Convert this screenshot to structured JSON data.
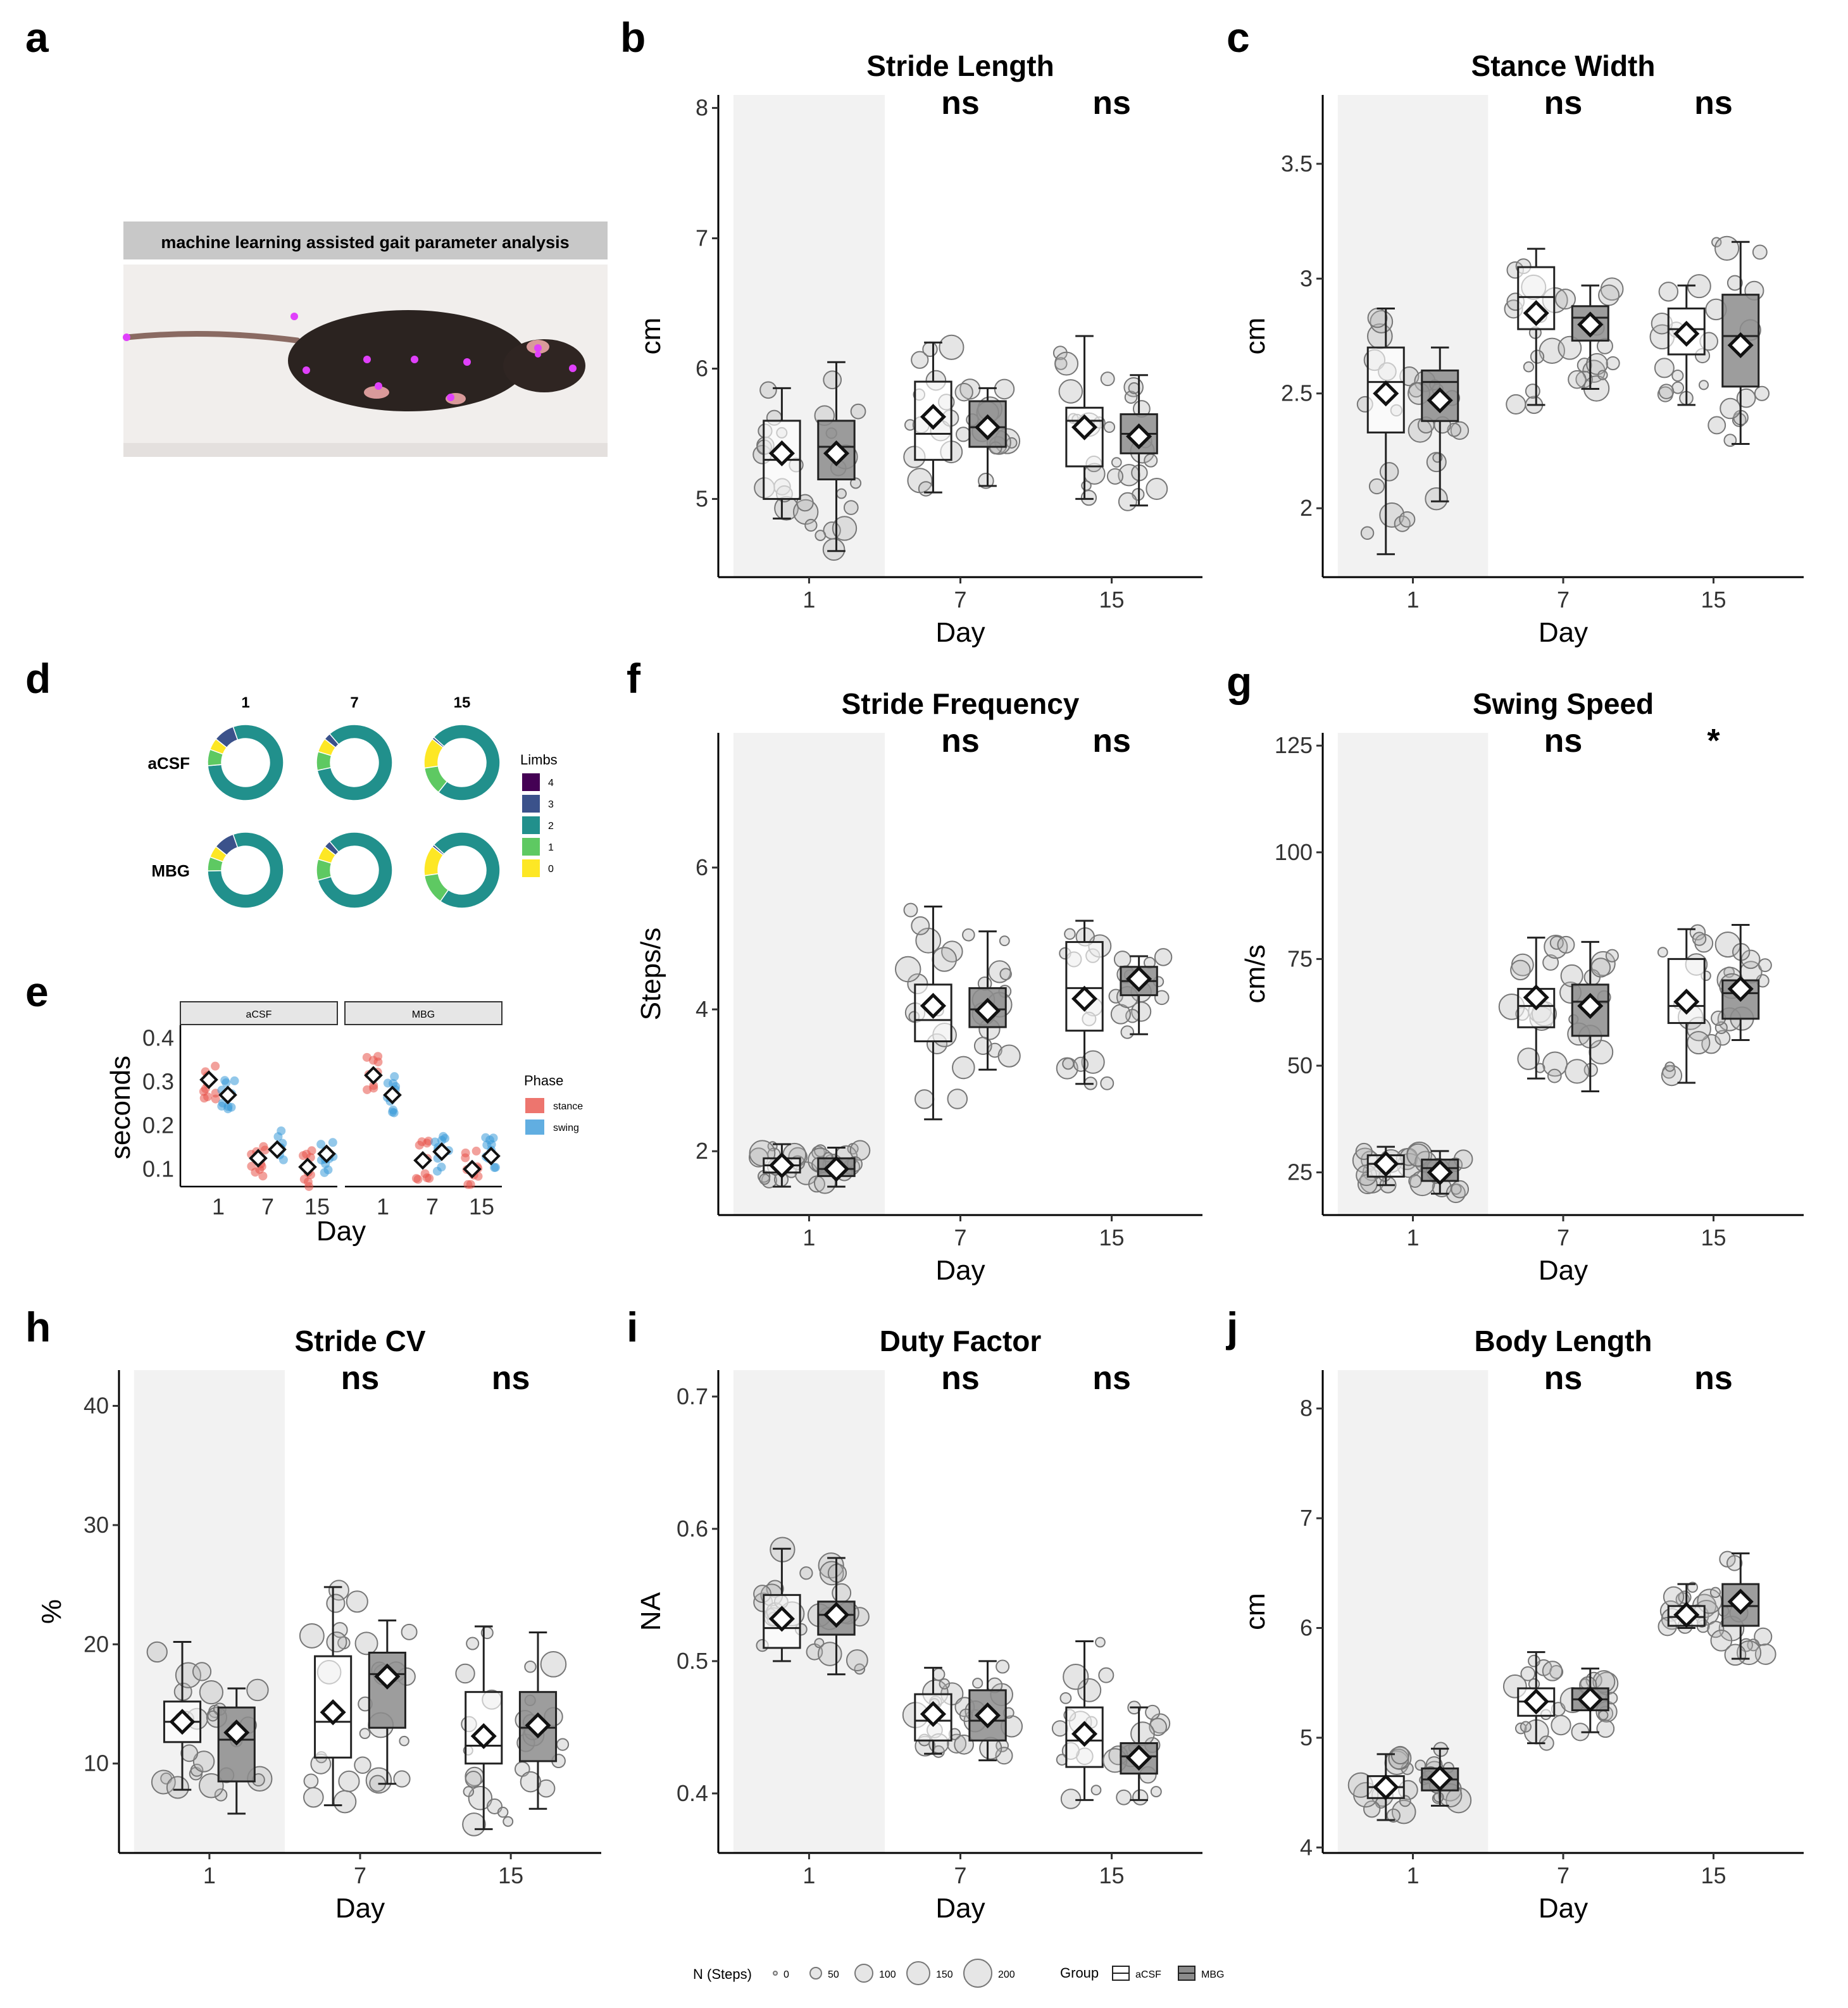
{
  "panel_letters": [
    "a",
    "b",
    "c",
    "d",
    "e",
    "f",
    "g",
    "h",
    "i",
    "j"
  ],
  "panel_a": {
    "banner": "machine learning assisted gait parameter analysis"
  },
  "chart_data": [
    {
      "id": "b",
      "type": "box",
      "title": "Stride Length",
      "xlabel": "Day",
      "ylabel": "cm",
      "categories": [
        "1",
        "7",
        "15"
      ],
      "ylim": [
        4.4,
        8.1
      ],
      "yticks": [
        5,
        6,
        7,
        8
      ],
      "significance": [
        "",
        "ns",
        "ns"
      ],
      "highlight_category": "1",
      "series": [
        {
          "name": "aCSF",
          "values": [
            {
              "q1": 5.0,
              "median": 5.3,
              "q3": 5.6,
              "min": 4.85,
              "max": 5.85,
              "mean": 5.35
            },
            {
              "q1": 5.3,
              "median": 5.5,
              "q3": 5.9,
              "min": 5.05,
              "max": 6.2,
              "mean": 5.63
            },
            {
              "q1": 5.25,
              "median": 5.6,
              "q3": 5.7,
              "min": 5.0,
              "max": 6.25,
              "mean": 5.55
            }
          ]
        },
        {
          "name": "MBG",
          "values": [
            {
              "q1": 5.15,
              "median": 5.4,
              "q3": 5.6,
              "min": 4.6,
              "max": 6.05,
              "mean": 5.35
            },
            {
              "q1": 5.4,
              "median": 5.55,
              "q3": 5.75,
              "min": 5.1,
              "max": 5.85,
              "mean": 5.55
            },
            {
              "q1": 5.35,
              "median": 5.5,
              "q3": 5.65,
              "min": 4.95,
              "max": 5.95,
              "mean": 5.48
            }
          ]
        }
      ]
    },
    {
      "id": "c",
      "type": "box",
      "title": "Stance Width",
      "xlabel": "Day",
      "ylabel": "cm",
      "categories": [
        "1",
        "7",
        "15"
      ],
      "ylim": [
        1.7,
        3.8
      ],
      "yticks": [
        2.0,
        2.5,
        3.0,
        3.5
      ],
      "significance": [
        "",
        "ns",
        "ns"
      ],
      "highlight_category": "1",
      "series": [
        {
          "name": "aCSF",
          "values": [
            {
              "q1": 2.33,
              "median": 2.55,
              "q3": 2.7,
              "min": 1.8,
              "max": 2.87,
              "mean": 2.5
            },
            {
              "q1": 2.78,
              "median": 2.92,
              "q3": 3.05,
              "min": 2.45,
              "max": 3.13,
              "mean": 2.85
            },
            {
              "q1": 2.67,
              "median": 2.78,
              "q3": 2.87,
              "min": 2.45,
              "max": 2.97,
              "mean": 2.76
            }
          ]
        },
        {
          "name": "MBG",
          "values": [
            {
              "q1": 2.38,
              "median": 2.55,
              "q3": 2.6,
              "min": 2.03,
              "max": 2.7,
              "mean": 2.47
            },
            {
              "q1": 2.73,
              "median": 2.83,
              "q3": 2.88,
              "min": 2.52,
              "max": 2.97,
              "mean": 2.8
            },
            {
              "q1": 2.53,
              "median": 2.75,
              "q3": 2.93,
              "min": 2.28,
              "max": 3.16,
              "mean": 2.71
            }
          ]
        }
      ]
    },
    {
      "id": "f",
      "type": "box",
      "title": "Stride Frequency",
      "xlabel": "Day",
      "ylabel": "Steps/s",
      "categories": [
        "1",
        "7",
        "15"
      ],
      "ylim": [
        1.1,
        7.9
      ],
      "yticks": [
        2,
        4,
        6
      ],
      "significance": [
        "",
        "ns",
        "ns"
      ],
      "highlight_category": "1",
      "series": [
        {
          "name": "aCSF",
          "values": [
            {
              "q1": 1.7,
              "median": 1.8,
              "q3": 1.9,
              "min": 1.5,
              "max": 2.1,
              "mean": 1.8
            },
            {
              "q1": 3.55,
              "median": 3.85,
              "q3": 4.35,
              "min": 2.45,
              "max": 5.45,
              "mean": 4.05
            },
            {
              "q1": 3.7,
              "median": 4.3,
              "q3": 4.95,
              "min": 2.95,
              "max": 5.25,
              "mean": 4.15
            }
          ]
        },
        {
          "name": "MBG",
          "values": [
            {
              "q1": 1.65,
              "median": 1.75,
              "q3": 1.9,
              "min": 1.5,
              "max": 2.05,
              "mean": 1.75
            },
            {
              "q1": 3.75,
              "median": 4.0,
              "q3": 4.3,
              "min": 3.15,
              "max": 5.1,
              "mean": 3.98
            },
            {
              "q1": 4.2,
              "median": 4.4,
              "q3": 4.6,
              "min": 3.65,
              "max": 4.75,
              "mean": 4.43
            }
          ]
        }
      ]
    },
    {
      "id": "g",
      "type": "box",
      "title": "Swing Speed",
      "xlabel": "Day",
      "ylabel": "cm/s",
      "categories": [
        "1",
        "7",
        "15"
      ],
      "ylim": [
        15,
        128
      ],
      "yticks": [
        25,
        50,
        75,
        100,
        125
      ],
      "significance": [
        "",
        "ns",
        "*"
      ],
      "highlight_category": "1",
      "series": [
        {
          "name": "aCSF",
          "values": [
            {
              "q1": 24,
              "median": 27,
              "q3": 29,
              "min": 22,
              "max": 31,
              "mean": 27
            },
            {
              "q1": 59,
              "median": 64,
              "q3": 68,
              "min": 47,
              "max": 80,
              "mean": 66
            },
            {
              "q1": 60,
              "median": 64,
              "q3": 75,
              "min": 46,
              "max": 82,
              "mean": 65
            }
          ]
        },
        {
          "name": "MBG",
          "values": [
            {
              "q1": 23,
              "median": 26,
              "q3": 28,
              "min": 20,
              "max": 30,
              "mean": 25
            },
            {
              "q1": 57,
              "median": 65,
              "q3": 69,
              "min": 44,
              "max": 79,
              "mean": 64
            },
            {
              "q1": 61,
              "median": 67,
              "q3": 70,
              "min": 56,
              "max": 83,
              "mean": 68
            }
          ]
        }
      ]
    },
    {
      "id": "h",
      "type": "box",
      "title": "Stride CV",
      "xlabel": "Day",
      "ylabel": "%",
      "categories": [
        "1",
        "7",
        "15"
      ],
      "ylim": [
        2.5,
        43
      ],
      "yticks": [
        10,
        20,
        30,
        40
      ],
      "significance": [
        "",
        "ns",
        "ns"
      ],
      "highlight_category": "1",
      "series": [
        {
          "name": "aCSF",
          "values": [
            {
              "q1": 11.8,
              "median": 13.5,
              "q3": 15.2,
              "min": 7.8,
              "max": 20.2,
              "mean": 13.5
            },
            {
              "q1": 10.5,
              "median": 13.5,
              "q3": 19.0,
              "min": 6.5,
              "max": 24.8,
              "mean": 14.3
            },
            {
              "q1": 10.0,
              "median": 11.5,
              "q3": 16.0,
              "min": 4.5,
              "max": 21.5,
              "mean": 12.3
            }
          ]
        },
        {
          "name": "MBG",
          "values": [
            {
              "q1": 8.5,
              "median": 12.0,
              "q3": 14.7,
              "min": 5.8,
              "max": 16.3,
              "mean": 12.6
            },
            {
              "q1": 13.0,
              "median": 17.5,
              "q3": 19.3,
              "min": 8.3,
              "max": 22.0,
              "mean": 17.3
            },
            {
              "q1": 10.2,
              "median": 13.0,
              "q3": 16.0,
              "min": 6.2,
              "max": 21.0,
              "mean": 13.2
            }
          ]
        }
      ]
    },
    {
      "id": "i",
      "type": "box",
      "title": "Duty Factor",
      "xlabel": "Day",
      "ylabel": "NA",
      "categories": [
        "1",
        "7",
        "15"
      ],
      "ylim": [
        0.355,
        0.72
      ],
      "yticks": [
        0.4,
        0.5,
        0.6,
        0.7
      ],
      "significance": [
        "",
        "ns",
        "ns"
      ],
      "highlight_category": "1",
      "series": [
        {
          "name": "aCSF",
          "values": [
            {
              "q1": 0.51,
              "median": 0.525,
              "q3": 0.55,
              "min": 0.5,
              "max": 0.585,
              "mean": 0.532
            },
            {
              "q1": 0.44,
              "median": 0.455,
              "q3": 0.475,
              "min": 0.43,
              "max": 0.495,
              "mean": 0.46
            },
            {
              "q1": 0.42,
              "median": 0.44,
              "q3": 0.465,
              "min": 0.395,
              "max": 0.515,
              "mean": 0.445
            }
          ]
        },
        {
          "name": "MBG",
          "values": [
            {
              "q1": 0.52,
              "median": 0.535,
              "q3": 0.545,
              "min": 0.49,
              "max": 0.578,
              "mean": 0.535
            },
            {
              "q1": 0.44,
              "median": 0.455,
              "q3": 0.478,
              "min": 0.425,
              "max": 0.5,
              "mean": 0.459
            },
            {
              "q1": 0.415,
              "median": 0.428,
              "q3": 0.438,
              "min": 0.395,
              "max": 0.465,
              "mean": 0.427
            }
          ]
        }
      ]
    },
    {
      "id": "j",
      "type": "box",
      "title": "Body Length",
      "xlabel": "Day",
      "ylabel": "cm",
      "categories": [
        "1",
        "7",
        "15"
      ],
      "ylim": [
        3.95,
        8.35
      ],
      "yticks": [
        4,
        5,
        6,
        7,
        8
      ],
      "significance": [
        "",
        "ns",
        "ns"
      ],
      "highlight_category": "1",
      "series": [
        {
          "name": "aCSF",
          "values": [
            {
              "q1": 4.45,
              "median": 4.55,
              "q3": 4.65,
              "min": 4.25,
              "max": 4.85,
              "mean": 4.55
            },
            {
              "q1": 5.2,
              "median": 5.33,
              "q3": 5.45,
              "min": 4.95,
              "max": 5.78,
              "mean": 5.33
            },
            {
              "q1": 6.02,
              "median": 6.1,
              "q3": 6.2,
              "min": 6.0,
              "max": 6.4,
              "mean": 6.12
            }
          ]
        },
        {
          "name": "MBG",
          "values": [
            {
              "q1": 4.52,
              "median": 4.62,
              "q3": 4.72,
              "min": 4.38,
              "max": 4.9,
              "mean": 4.63
            },
            {
              "q1": 5.25,
              "median": 5.35,
              "q3": 5.45,
              "min": 5.05,
              "max": 5.63,
              "mean": 5.35
            },
            {
              "q1": 6.02,
              "median": 6.2,
              "q3": 6.4,
              "min": 5.72,
              "max": 6.68,
              "mean": 6.24
            }
          ]
        }
      ]
    },
    {
      "id": "d",
      "type": "donut",
      "columns": [
        "1",
        "7",
        "15"
      ],
      "rows": [
        "aCSF",
        "MBG"
      ],
      "legend_title": "Limbs",
      "legend": [
        {
          "label": "4",
          "color": "#440154"
        },
        {
          "label": "3",
          "color": "#3b528b"
        },
        {
          "label": "2",
          "color": "#21908c"
        },
        {
          "label": "1",
          "color": "#5ec962"
        },
        {
          "label": "0",
          "color": "#fde725"
        }
      ],
      "fractions_order": [
        "4",
        "3",
        "2",
        "1",
        "0"
      ],
      "donuts": [
        [
          0.0,
          0.09,
          0.79,
          0.07,
          0.05
        ],
        [
          0.0,
          0.03,
          0.83,
          0.08,
          0.06
        ],
        [
          0.0,
          0.01,
          0.74,
          0.12,
          0.13
        ],
        [
          0.0,
          0.09,
          0.8,
          0.06,
          0.05
        ],
        [
          0.0,
          0.03,
          0.82,
          0.09,
          0.06
        ],
        [
          0.0,
          0.01,
          0.73,
          0.13,
          0.13
        ]
      ]
    },
    {
      "id": "e",
      "type": "point",
      "facets": [
        "aCSF",
        "MBG"
      ],
      "xlabel": "Day",
      "ylabel": "seconds",
      "categories": [
        "1",
        "7",
        "15"
      ],
      "ylim": [
        0.06,
        0.43
      ],
      "yticks": [
        0.1,
        0.2,
        0.3,
        0.4
      ],
      "legend_title": "Phase",
      "series": [
        {
          "name": "stance",
          "color": "#e8534a",
          "means": [
            [
              0.305,
              0.125,
              0.105
            ],
            [
              0.315,
              0.12,
              0.1
            ]
          ]
        },
        {
          "name": "swing",
          "color": "#3a9ad9",
          "means": [
            [
              0.27,
              0.145,
              0.135
            ],
            [
              0.27,
              0.14,
              0.13
            ]
          ]
        }
      ]
    }
  ],
  "legend": {
    "size_title": "N (Steps)",
    "size_values": [
      "0",
      "50",
      "100",
      "150",
      "200"
    ],
    "group_title": "Group",
    "groups": [
      "aCSF",
      "MBG"
    ]
  }
}
